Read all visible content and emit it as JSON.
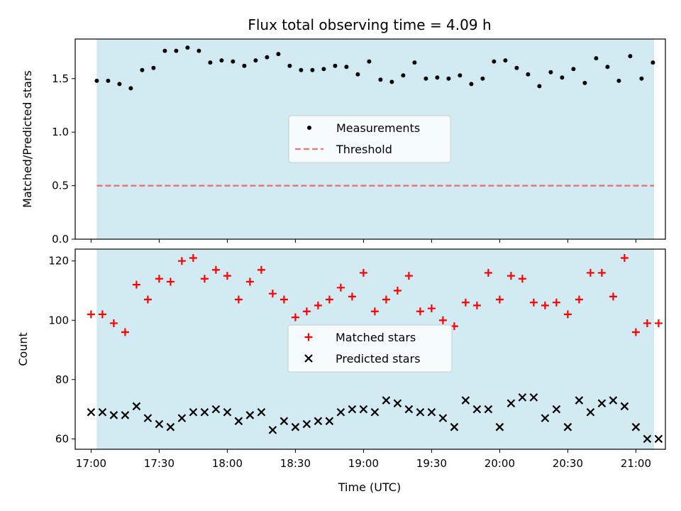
{
  "chart_data": {
    "title": "Flux total observing time = 4.09 h",
    "xlabel": "Time (UTC)",
    "x_ticks": [
      "17:00",
      "17:30",
      "18:00",
      "18:30",
      "19:00",
      "19:30",
      "20:00",
      "20:30",
      "21:00"
    ],
    "x_tick_minutes": [
      0,
      30,
      60,
      90,
      120,
      150,
      180,
      210,
      240
    ],
    "x_range_minutes": [
      -7,
      253
    ],
    "shaded_span_minutes": [
      2.5,
      248
    ],
    "shade_color": "#add8e6",
    "panels": [
      {
        "type": "scatter",
        "ylabel": "Matched/Predicted stars",
        "ylim": [
          0,
          1.87
        ],
        "y_ticks": [
          "0.0",
          "0.5",
          "1.0",
          "1.5"
        ],
        "y_tick_values": [
          0,
          0.5,
          1.0,
          1.5
        ],
        "legend_position": "center",
        "series": [
          {
            "name": "Measurements",
            "marker": "dot",
            "color": "#000000",
            "x_minutes": [
              2.5,
              7.5,
              12.5,
              17.5,
              22.5,
              27.5,
              32.5,
              37.5,
              42.5,
              47.5,
              52.5,
              57.5,
              62.5,
              67.5,
              72.5,
              77.5,
              82.5,
              87.5,
              92.5,
              97.5,
              102.5,
              107.5,
              112.5,
              117.5,
              122.5,
              127.5,
              132.5,
              137.5,
              142.5,
              147.5,
              152.5,
              157.5,
              162.5,
              167.5,
              172.5,
              177.5,
              182.5,
              187.5,
              192.5,
              197.5,
              202.5,
              207.5,
              212.5,
              217.5,
              222.5,
              227.5,
              232.5,
              237.5,
              242.5,
              247.5
            ],
            "values": [
              1.48,
              1.48,
              1.45,
              1.41,
              1.58,
              1.6,
              1.76,
              1.76,
              1.79,
              1.76,
              1.65,
              1.67,
              1.66,
              1.62,
              1.67,
              1.7,
              1.73,
              1.62,
              1.58,
              1.58,
              1.59,
              1.62,
              1.61,
              1.54,
              1.66,
              1.49,
              1.47,
              1.53,
              1.65,
              1.5,
              1.51,
              1.5,
              1.53,
              1.45,
              1.5,
              1.66,
              1.67,
              1.6,
              1.54,
              1.43,
              1.56,
              1.51,
              1.59,
              1.46,
              1.69,
              1.61,
              1.48,
              1.71,
              1.5,
              1.65
            ]
          },
          {
            "name": "Threshold",
            "marker": "dashed-line",
            "color": "#ff0000",
            "value": 0.5
          }
        ]
      },
      {
        "type": "scatter",
        "ylabel": "Count",
        "ylim": [
          56.5,
          124
        ],
        "y_ticks": [
          "60",
          "80",
          "100",
          "120"
        ],
        "y_tick_values": [
          60,
          80,
          100,
          120
        ],
        "legend_position": "center",
        "series": [
          {
            "name": "Matched stars",
            "marker": "plus",
            "color": "#ff0000",
            "x_minutes": [
              0,
              5,
              10,
              15,
              20,
              25,
              30,
              35,
              40,
              45,
              50,
              55,
              60,
              65,
              70,
              75,
              80,
              85,
              90,
              95,
              100,
              105,
              110,
              115,
              120,
              125,
              130,
              135,
              140,
              145,
              150,
              155,
              160,
              165,
              170,
              175,
              180,
              185,
              190,
              195,
              200,
              205,
              210,
              215,
              220,
              225,
              230,
              235,
              240,
              245,
              250
            ],
            "values": [
              102,
              102,
              99,
              96,
              112,
              107,
              114,
              113,
              120,
              121,
              114,
              117,
              115,
              107,
              113,
              117,
              109,
              107,
              101,
              103,
              105,
              107,
              111,
              108,
              116,
              103,
              107,
              110,
              115,
              103,
              104,
              100,
              98,
              106,
              105,
              116,
              107,
              115,
              114,
              106,
              105,
              106,
              102,
              107,
              116,
              116,
              108,
              121,
              96,
              99,
              99
            ]
          },
          {
            "name": "Predicted stars",
            "marker": "x",
            "color": "#000000",
            "x_minutes": [
              0,
              5,
              10,
              15,
              20,
              25,
              30,
              35,
              40,
              45,
              50,
              55,
              60,
              65,
              70,
              75,
              80,
              85,
              90,
              95,
              100,
              105,
              110,
              115,
              120,
              125,
              130,
              135,
              140,
              145,
              150,
              155,
              160,
              165,
              170,
              175,
              180,
              185,
              190,
              195,
              200,
              205,
              210,
              215,
              220,
              225,
              230,
              235,
              240,
              245,
              250
            ],
            "values": [
              69,
              69,
              68,
              68,
              71,
              67,
              65,
              64,
              67,
              69,
              69,
              70,
              69,
              66,
              68,
              69,
              63,
              66,
              64,
              65,
              66,
              66,
              69,
              70,
              70,
              69,
              73,
              72,
              70,
              69,
              69,
              67,
              64,
              73,
              70,
              70,
              64,
              72,
              74,
              74,
              67,
              70,
              64,
              73,
              69,
              72,
              73,
              71,
              64,
              60,
              60
            ]
          }
        ]
      }
    ]
  }
}
